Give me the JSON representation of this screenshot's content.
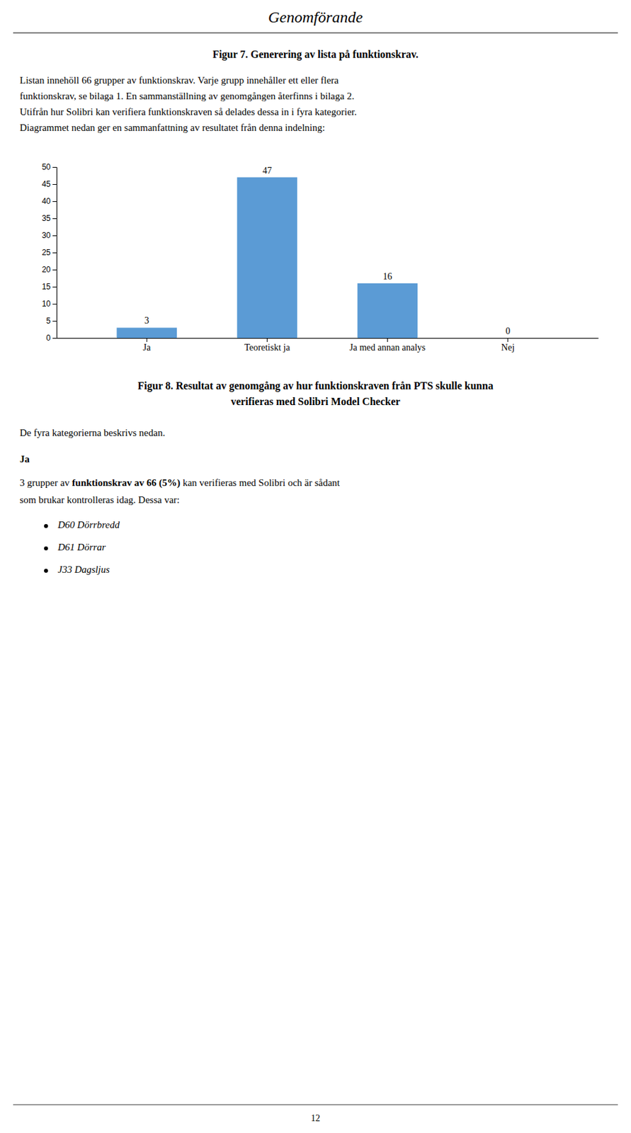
{
  "page": {
    "title": "Genomförande",
    "figure7_caption": "Figur 7.  Generering av lista på funktionskrav.",
    "paragraph1": [
      "Listan innehöll 66 grupper av funktionskrav. Varje grupp innehåller ett eller flera",
      "funktionskrav, se bilaga 1. En sammanställning av genomgången återfinns i bilaga 2.",
      "Utifrån hur Solibri kan verifiera funktionskraven så delades dessa in i fyra kategorier.",
      "Diagrammet nedan ger en sammanfattning av resultatet från denna indelning:"
    ],
    "figure8_caption": [
      "Figur 8.  Resultat av genomgång av hur funktionskraven från PTS skulle kunna",
      "verifieras med Solibri Model Checker"
    ],
    "paragraph2": "De fyra kategorierna beskrivs nedan.",
    "heading": "Ja",
    "paragraph3_line1": [
      "3 grupper av ",
      "funktionskrav av 66 (5%)",
      " kan verifieras med Solibri och är sådant"
    ],
    "paragraph3_line2": "som brukar kontrolleras idag. Dessa var:",
    "bullet_points": [
      "D60 Dörrbredd",
      "D61 Dörrar",
      "J33 Dagsljus"
    ],
    "page_number": "12"
  },
  "chart_data": {
    "type": "bar",
    "categories": [
      "Ja",
      "Teoretiskt ja",
      "Ja med annan analys",
      "Nej"
    ],
    "values": [
      3,
      47,
      16,
      0
    ],
    "color": "#5B9BD5",
    "ylim": [
      0,
      50
    ],
    "yticks": [
      0,
      5,
      10,
      15,
      20,
      25,
      30,
      35,
      40,
      45,
      50
    ],
    "data_labels": true
  }
}
